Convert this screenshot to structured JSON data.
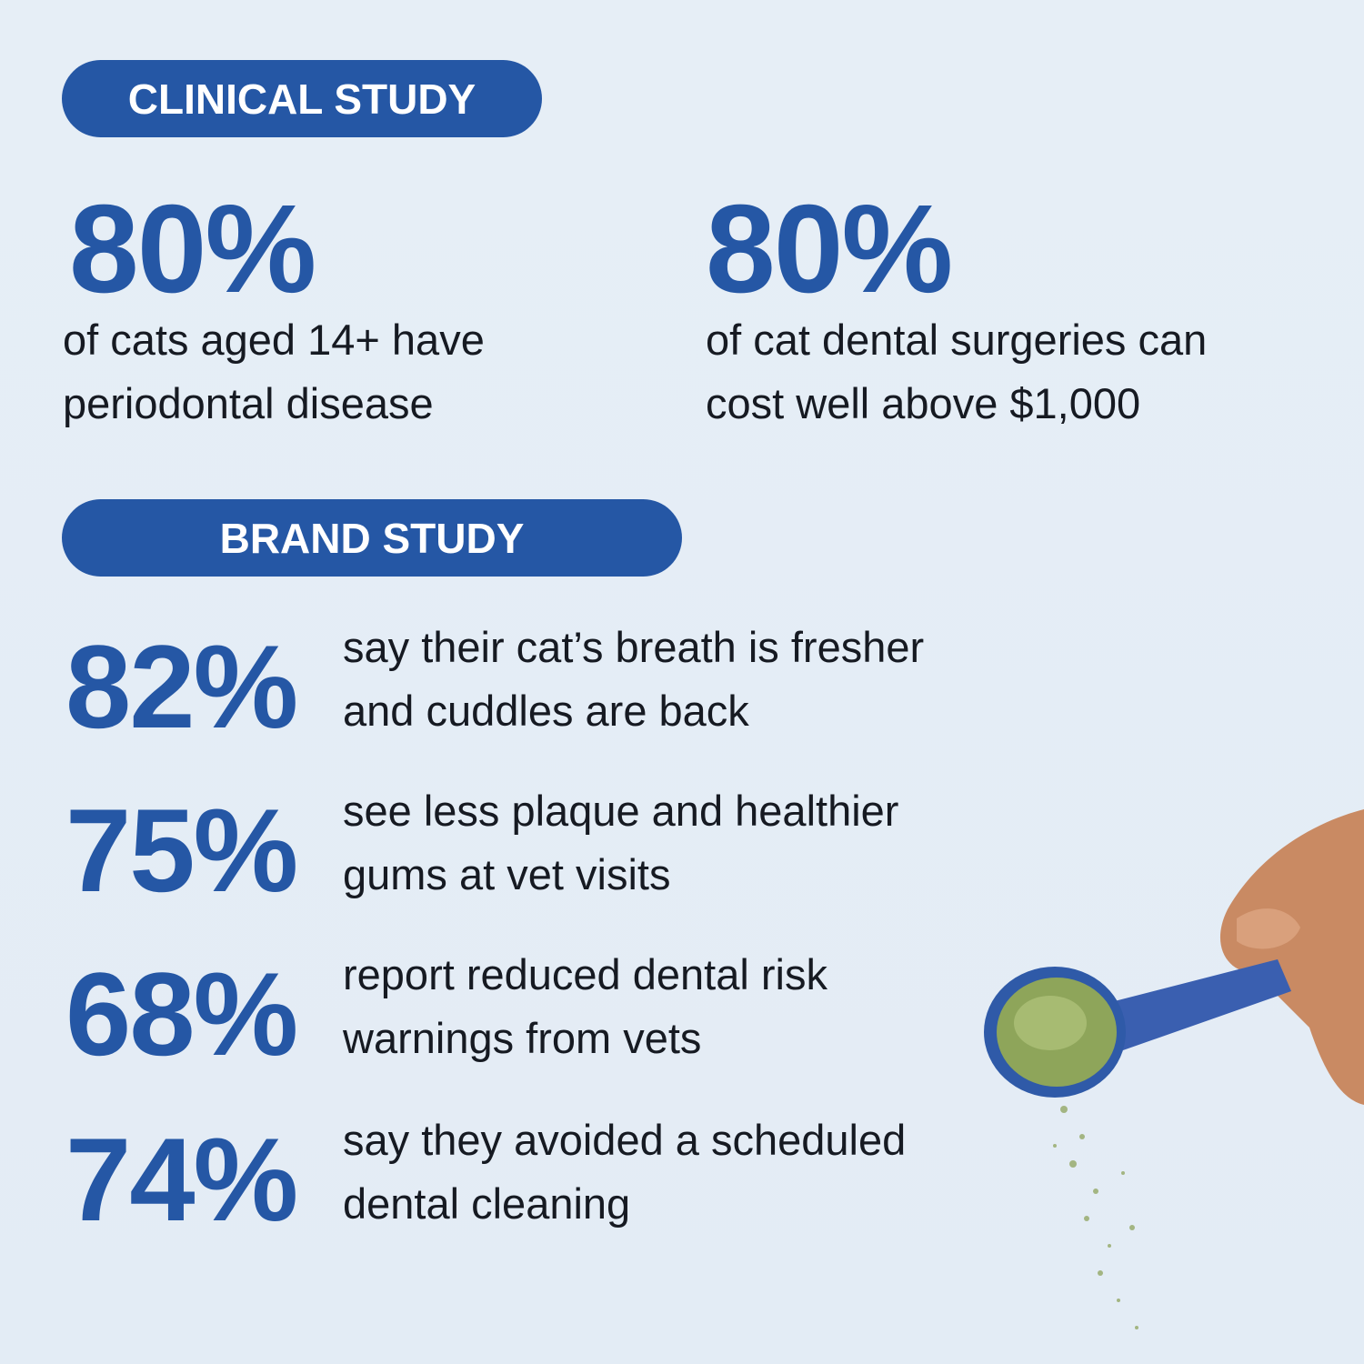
{
  "clinical_study": {
    "badge": "CLINICAL STUDY",
    "stats": [
      {
        "figure": "80%",
        "lines": [
          "of cats aged 14+ have",
          "periodontal disease"
        ]
      },
      {
        "figure": "80%",
        "lines": [
          "of cat dental surgeries can",
          "cost well above $1,000"
        ]
      }
    ]
  },
  "brand_study": {
    "badge": "BRAND STUDY",
    "stats": [
      {
        "figure": "82%",
        "lines": [
          "say their cat’s breath is fresher",
          "and cuddles are back"
        ]
      },
      {
        "figure": "75%",
        "lines": [
          "see less plaque and healthier",
          "gums at vet visits"
        ]
      },
      {
        "figure": "68%",
        "lines": [
          "report reduced dental risk",
          "warnings from vets"
        ]
      },
      {
        "figure": "74%",
        "lines": [
          "say they avoided a scheduled",
          "dental cleaning"
        ]
      }
    ]
  }
}
